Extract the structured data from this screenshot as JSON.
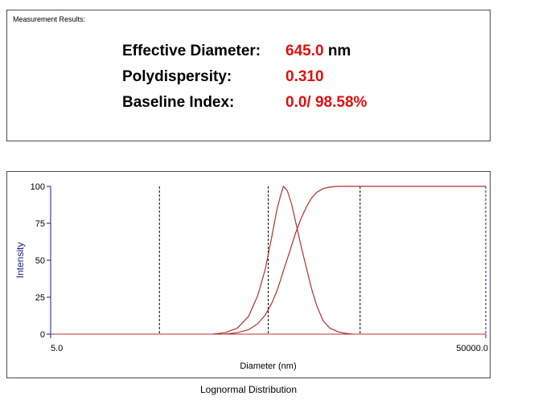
{
  "results": {
    "caption": "Measurement Results:",
    "effective_diameter": {
      "label": "Effective Diameter:",
      "value": "645.0",
      "unit": "nm"
    },
    "polydispersity": {
      "label": "Polydispersity:",
      "value": "0.310"
    },
    "baseline_index": {
      "label": "Baseline Index:",
      "value": "0.0/ 98.58%"
    }
  },
  "colors": {
    "value_text": "#e01010",
    "curve": "#b03030",
    "axis": "#1a1a80",
    "dashed": "#000000"
  },
  "chart_data": {
    "type": "line",
    "ylabel": "Intensity",
    "xlabel": "Diameter (nm)",
    "caption": "Lognormal Distribution",
    "x_scale": "log",
    "xlim": [
      5.0,
      50000.0
    ],
    "ylim": [
      0,
      100
    ],
    "x_tick_labels": [
      "5.0",
      "50000.0"
    ],
    "y_ticks": [
      0,
      25,
      50,
      75,
      100
    ],
    "series": [
      {
        "kind": "distribution",
        "x": [
          155,
          200,
          260,
          330,
          400,
          470,
          540,
          600,
          645,
          690,
          750,
          820,
          900,
          1000,
          1120,
          1250,
          1400,
          1600,
          1850,
          2200,
          2600,
          3000
        ],
        "y": [
          0,
          1,
          4,
          12,
          26,
          44,
          66,
          84,
          93,
          100,
          97,
          88,
          75,
          60,
          45,
          31,
          19,
          9,
          4,
          1.5,
          0.5,
          0
        ]
      },
      {
        "kind": "cumulative",
        "x": [
          200,
          260,
          330,
          400,
          470,
          540,
          600,
          645,
          690,
          750,
          820,
          900,
          1000,
          1120,
          1250,
          1400,
          1600,
          1850,
          2200,
          2600,
          3000,
          50000
        ],
        "y": [
          0,
          1,
          3,
          7,
          13,
          21,
          29,
          36,
          43,
          51,
          60,
          69,
          78,
          86,
          92,
          96,
          98.5,
          99.5,
          100,
          100,
          100,
          100
        ]
      }
    ],
    "reference_lines_x": [
      50,
      500,
      3500,
      50000
    ]
  }
}
